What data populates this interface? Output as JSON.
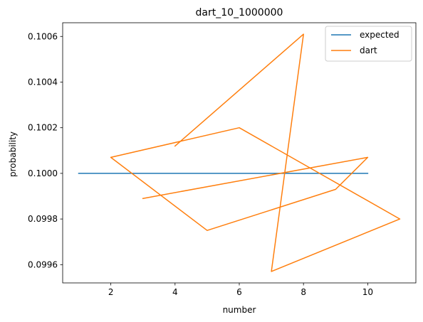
{
  "chart_data": {
    "type": "line",
    "title": "dart_10_1000000",
    "xlabel": "number",
    "ylabel": "probability",
    "xlim": [
      0.5,
      11.5
    ],
    "ylim": [
      0.09952,
      0.10066
    ],
    "x_ticks": [
      2,
      4,
      6,
      8,
      10
    ],
    "x_tick_labels": [
      "2",
      "4",
      "6",
      "8",
      "10"
    ],
    "y_ticks": [
      0.0996,
      0.0998,
      0.1,
      0.1002,
      0.1004,
      0.1006
    ],
    "y_tick_labels": [
      "0.0996",
      "0.0998",
      "0.1000",
      "0.1002",
      "0.1004",
      "0.1006"
    ],
    "grid": false,
    "legend_position": "top-right",
    "series": [
      {
        "name": "expected",
        "color": "#1f77b4",
        "points": [
          [
            1,
            0.1
          ],
          [
            10,
            0.1
          ]
        ]
      },
      {
        "name": "dart",
        "color": "#ff7f0e",
        "points": [
          [
            4,
            0.10012
          ],
          [
            8,
            0.10061
          ],
          [
            7,
            0.09957
          ],
          [
            11,
            0.0998
          ],
          [
            6,
            0.1002
          ],
          [
            2,
            0.10007
          ],
          [
            5,
            0.09975
          ],
          [
            9,
            0.09993
          ],
          [
            10,
            0.10007
          ],
          [
            3,
            0.09989
          ]
        ]
      }
    ]
  }
}
